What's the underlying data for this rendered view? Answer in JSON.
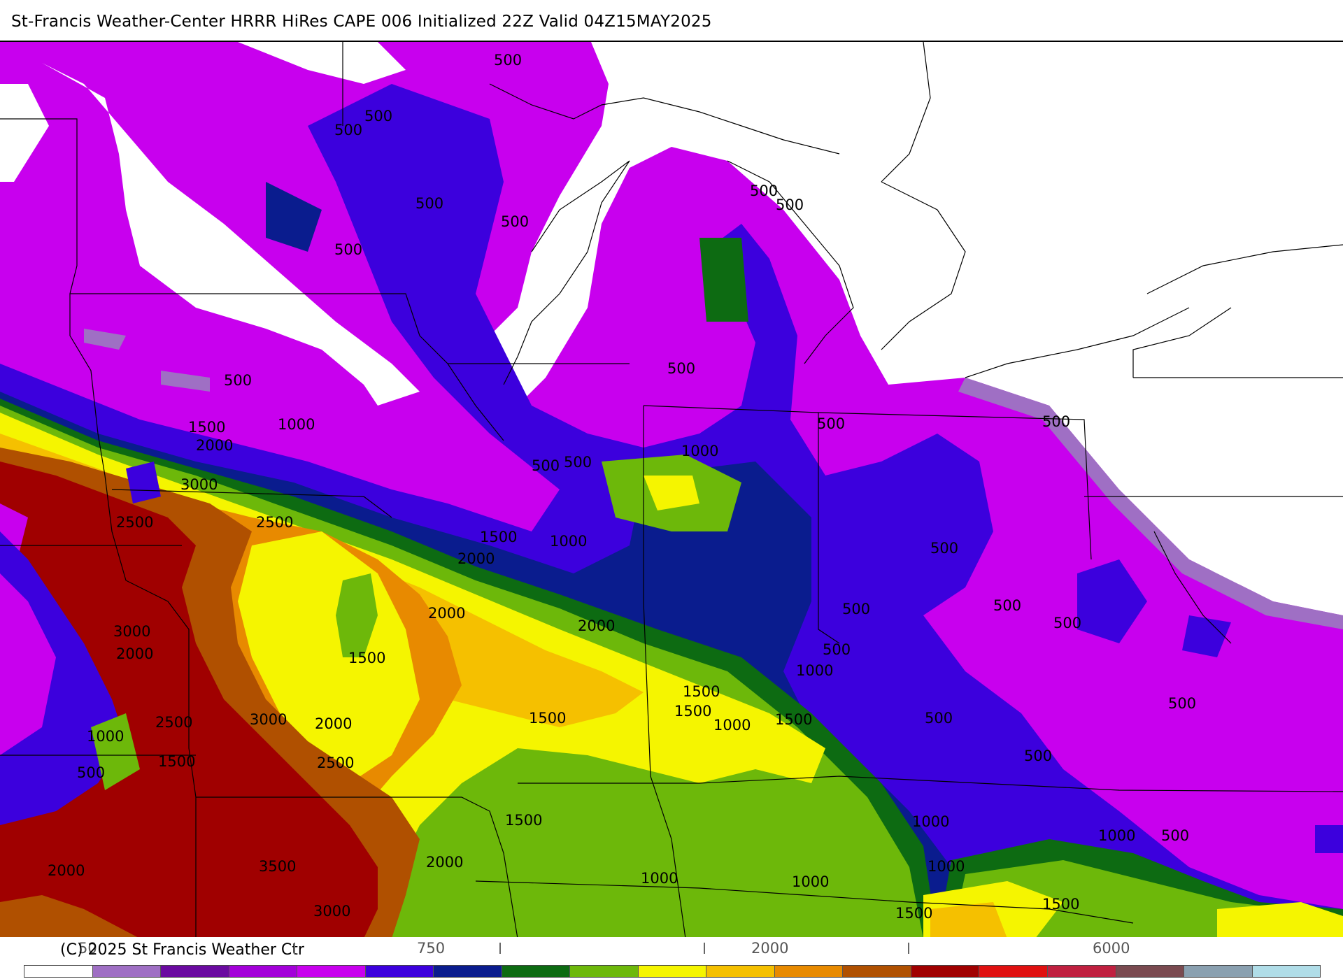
{
  "header": {
    "title": "St-Francis Weather-Center HRRR HiRes CAPE  006 Initialized  22Z Valid 04Z15MAY2025"
  },
  "footer": {
    "copyright": "(C) 2025 St Francis Weather Ctr",
    "colorbar_ticks": [
      "50",
      "750",
      "2000",
      "6000"
    ]
  },
  "legend": {
    "colors": [
      "#ffffff",
      "#9f6fc4",
      "#6a0aa0",
      "#a300d9",
      "#c800ee",
      "#3c00dd",
      "#0a1c8e",
      "#0d6b12",
      "#6db80a",
      "#f5f500",
      "#f5c000",
      "#e88a00",
      "#b05000",
      "#a00000",
      "#e01010",
      "#c02040",
      "#7a4a50",
      "#8aa0b0",
      "#b0dde8"
    ]
  },
  "map": {
    "contour_labels": [
      {
        "text": "500",
        "band": "purple"
      },
      {
        "text": "500",
        "band": "purple"
      },
      {
        "text": "500",
        "band": "purple"
      },
      {
        "text": "500",
        "band": "purple"
      },
      {
        "text": "500",
        "band": "purple"
      },
      {
        "text": "500",
        "band": "purple"
      },
      {
        "text": "500",
        "band": "purple"
      },
      {
        "text": "500",
        "band": "purple"
      },
      {
        "text": "500",
        "band": "purple"
      },
      {
        "text": "500",
        "band": "purple"
      },
      {
        "text": "1500",
        "band": "orange"
      },
      {
        "text": "2000",
        "band": "orange"
      },
      {
        "text": "1000",
        "band": "green"
      },
      {
        "text": "3000",
        "band": "red"
      },
      {
        "text": "2500",
        "band": "red"
      },
      {
        "text": "2500",
        "band": "orange"
      },
      {
        "text": "500",
        "band": "purple"
      },
      {
        "text": "500",
        "band": "purple"
      },
      {
        "text": "1000",
        "band": "green"
      },
      {
        "text": "500",
        "band": "purple"
      },
      {
        "text": "500",
        "band": "purple"
      },
      {
        "text": "1500",
        "band": "yellow"
      },
      {
        "text": "1000",
        "band": "green"
      },
      {
        "text": "2000",
        "band": "orange"
      },
      {
        "text": "500",
        "band": "purple"
      },
      {
        "text": "2000",
        "band": "orange"
      },
      {
        "text": "2000",
        "band": "orange"
      },
      {
        "text": "500",
        "band": "purple"
      },
      {
        "text": "500",
        "band": "purple"
      },
      {
        "text": "500",
        "band": "purple"
      },
      {
        "text": "3000",
        "band": "red"
      },
      {
        "text": "2000",
        "band": "red"
      },
      {
        "text": "1500",
        "band": "yellow"
      },
      {
        "text": "500",
        "band": "purple"
      },
      {
        "text": "1000",
        "band": "green"
      },
      {
        "text": "1500",
        "band": "yellow"
      },
      {
        "text": "1500",
        "band": "yellow"
      },
      {
        "text": "1000",
        "band": "green"
      },
      {
        "text": "1500",
        "band": "yellow"
      },
      {
        "text": "500",
        "band": "purple"
      },
      {
        "text": "2500",
        "band": "red"
      },
      {
        "text": "3000",
        "band": "red"
      },
      {
        "text": "2000",
        "band": "red"
      },
      {
        "text": "1500",
        "band": "yellow"
      },
      {
        "text": "1000",
        "band": "green"
      },
      {
        "text": "1500",
        "band": "yellow"
      },
      {
        "text": "2500",
        "band": "red"
      },
      {
        "text": "500",
        "band": "purple"
      },
      {
        "text": "500",
        "band": "purple"
      },
      {
        "text": "500",
        "band": "purple"
      },
      {
        "text": "1500",
        "band": "yellow"
      },
      {
        "text": "1000",
        "band": "green"
      },
      {
        "text": "1000",
        "band": "green"
      },
      {
        "text": "500",
        "band": "purple"
      },
      {
        "text": "2000",
        "band": "red"
      },
      {
        "text": "3500",
        "band": "red"
      },
      {
        "text": "2000",
        "band": "orange"
      },
      {
        "text": "1000",
        "band": "green"
      },
      {
        "text": "1000",
        "band": "green"
      },
      {
        "text": "1000",
        "band": "green"
      },
      {
        "text": "3000",
        "band": "red"
      },
      {
        "text": "1500",
        "band": "yellow"
      },
      {
        "text": "1500",
        "band": "yellow"
      }
    ]
  }
}
